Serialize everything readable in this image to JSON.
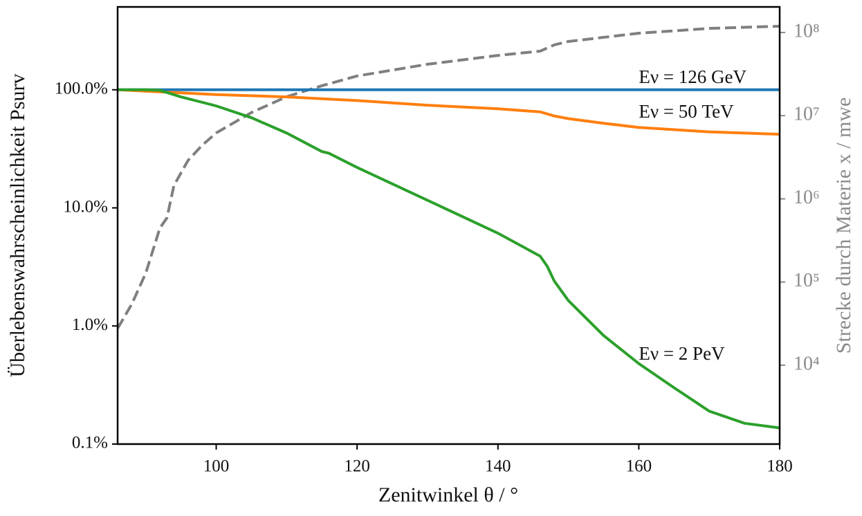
{
  "chart_data": {
    "type": "line",
    "xlabel": "Zenitwinkel θ / °",
    "ylabel": "Überlebenswahrscheinlichkeit Psurv",
    "y2label": "Strecke durch Materie x / mwe",
    "xlim": [
      86,
      180
    ],
    "xticks": [
      100,
      120,
      140,
      160,
      180
    ],
    "ylim": [
      0.1,
      503
    ],
    "yscale": "log",
    "yticks": [
      {
        "value": 0.1,
        "label": "0.1%"
      },
      {
        "value": 1,
        "label": "1.0%"
      },
      {
        "value": 10,
        "label": "10.0%"
      },
      {
        "value": 100,
        "label": "100.0%"
      }
    ],
    "y2lim": [
      1127,
      203000000
    ],
    "y2scale": "log",
    "y2ticks": [
      {
        "value": 10000,
        "label": "10⁴"
      },
      {
        "value": 100000,
        "label": "10⁵"
      },
      {
        "value": 1000000,
        "label": "10⁶"
      },
      {
        "value": 10000000,
        "label": "10⁷"
      },
      {
        "value": 100000000,
        "label": "10⁸"
      }
    ],
    "series": [
      {
        "name": "Eν = 126 GeV",
        "color": "#1f77b4",
        "x": [
          86,
          180
        ],
        "values": [
          100,
          100
        ]
      },
      {
        "name": "Eν = 50 TeV",
        "color": "#ff7f0e",
        "x": [
          86,
          100,
          110,
          115,
          120,
          130,
          140,
          146,
          148,
          150,
          155,
          160,
          170,
          180
        ],
        "values": [
          100,
          91,
          87,
          84,
          81,
          74,
          69,
          65,
          60,
          57,
          52,
          48,
          44,
          42
        ]
      },
      {
        "name": "Eν = 2 PeV",
        "color": "#2ca02c",
        "x": [
          86,
          90,
          92,
          95,
          100,
          105,
          110,
          115,
          116,
          120,
          130,
          140,
          146,
          147,
          148,
          150,
          155,
          160,
          165,
          170,
          175,
          180
        ],
        "values": [
          100,
          100,
          99,
          87,
          73,
          58,
          43,
          30,
          29,
          22,
          11.6,
          6.1,
          3.9,
          3.2,
          2.4,
          1.64,
          0.83,
          0.48,
          0.3,
          0.19,
          0.15,
          0.137
        ]
      },
      {
        "color": "#7f7f7f",
        "axis": "y2",
        "dashed": true,
        "x": [
          86,
          88,
          90,
          92,
          93,
          94,
          96,
          98,
          100,
          105,
          110,
          115,
          120,
          130,
          140,
          146,
          148,
          150,
          160,
          170,
          180
        ],
        "values": [
          27700,
          54000,
          128000,
          445000,
          590000,
          1450000,
          2900000,
          4400000,
          6200000,
          10900000,
          16900000,
          22900000,
          30000000,
          41500000,
          53000000,
          59700000,
          71000000,
          78000000,
          98000000,
          112000000,
          119000000
        ]
      }
    ]
  }
}
